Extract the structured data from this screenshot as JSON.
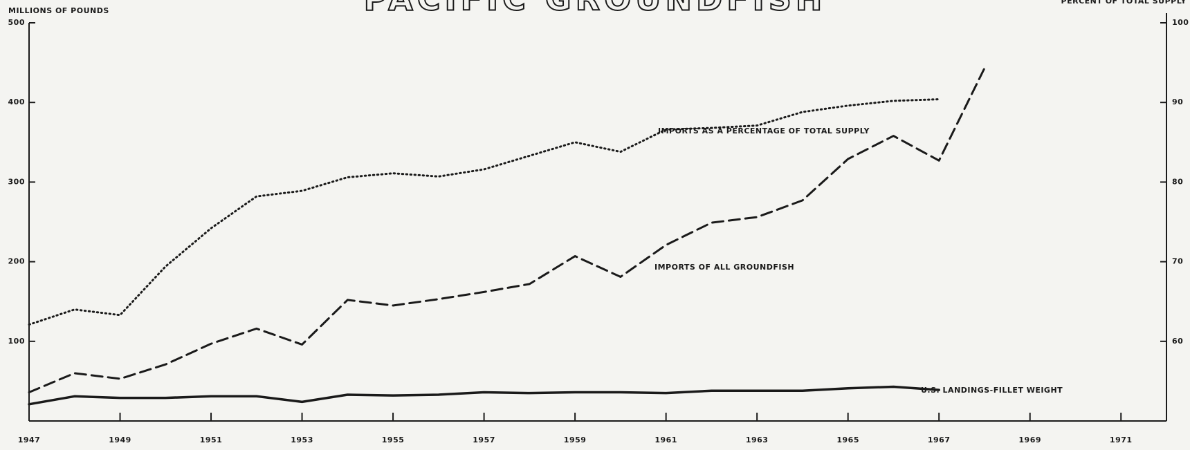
{
  "chart_data": {
    "type": "line",
    "title": "PACIFIC GROUNDFISH",
    "y_label": "MILLIONS OF POUNDS",
    "y2_label": "PERCENT OF TOTAL SUPPLY",
    "x": [
      1947,
      1948,
      1949,
      1950,
      1951,
      1952,
      1953,
      1954,
      1955,
      1956,
      1957,
      1958,
      1959,
      1960,
      1961,
      1962,
      1963,
      1964,
      1965,
      1966,
      1967,
      1968
    ],
    "xlim": [
      1947,
      1972
    ],
    "xticks": [
      1947,
      1949,
      1951,
      1953,
      1955,
      1957,
      1959,
      1961,
      1963,
      1965,
      1967,
      1969,
      1971
    ],
    "ylim": [
      0,
      500
    ],
    "yticks": [
      100,
      200,
      300,
      400,
      500
    ],
    "y2lim": [
      50,
      100
    ],
    "y2ticks": [
      60,
      70,
      80,
      90,
      100
    ],
    "series": [
      {
        "name": "IMPORTS AS A PERCENTAGE OF TOTAL SUPPLY",
        "color": "#1a1a1a",
        "style": "dotted",
        "axis": "y2",
        "values": [
          62.1,
          64,
          63.3,
          69.4,
          74.2,
          78.2,
          78.9,
          80.6,
          81.1,
          80.7,
          81.6,
          83.3,
          85,
          83.8,
          86.6,
          86.8,
          87.1,
          88.8,
          89.6,
          90.2,
          90.4,
          null
        ]
      },
      {
        "name": "IMPORTS OF ALL GROUNDFISH",
        "color": "#1a1a1a",
        "style": "dashed",
        "values": [
          36,
          60,
          53,
          71,
          97,
          116,
          96,
          152,
          145,
          153,
          162,
          172,
          207,
          181,
          221,
          249,
          256,
          277,
          329,
          358,
          327,
          443
        ]
      },
      {
        "name": "U.S. LANDINGS-FILLET WEIGHT",
        "color": "#1a1a1a",
        "style": "solid",
        "values": [
          21,
          31,
          29,
          29,
          31,
          31,
          24,
          33,
          32,
          33,
          36,
          35,
          36,
          36,
          35,
          38,
          38,
          38,
          41,
          43,
          39,
          null
        ]
      }
    ]
  }
}
